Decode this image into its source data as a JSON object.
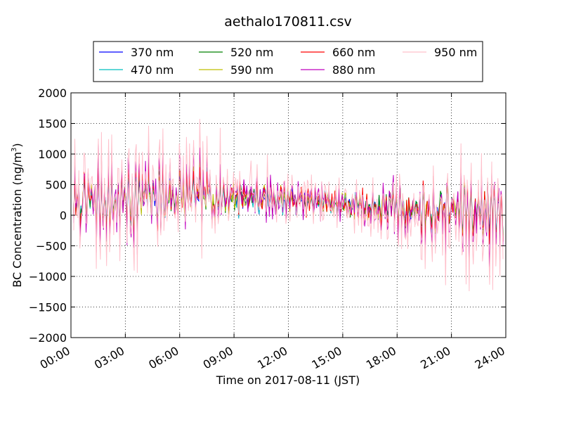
{
  "chart_data": {
    "type": "line",
    "title": "aethalo170811.csv",
    "xlabel": "Time on 2017-08-11 (JST)",
    "ylabel": "BC Concentration (ng/m³)",
    "ylabel_main": "BC Concentration (ng/m",
    "ylabel_sup": "3",
    "ylabel_end": ")",
    "xlim": [
      "00:00",
      "24:00"
    ],
    "ylim": [
      -2000,
      2000
    ],
    "x_tick_labels": [
      "00:00",
      "03:00",
      "06:00",
      "09:00",
      "12:00",
      "15:00",
      "18:00",
      "21:00",
      "24:00"
    ],
    "y_tick_labels": [
      "2000",
      "1500",
      "1000",
      "500",
      "0",
      "−500",
      "−1000",
      "−1500",
      "−2000"
    ],
    "y_ticks": [
      2000,
      1500,
      1000,
      500,
      0,
      -500,
      -1000,
      -1500,
      -2000
    ],
    "grid": true,
    "legend_position": "top-center",
    "series": [
      {
        "name": "370 nm",
        "color": "#0000ff",
        "amplitude": 300,
        "seed": 11
      },
      {
        "name": "470 nm",
        "color": "#00bfbf",
        "amplitude": 310,
        "seed": 23
      },
      {
        "name": "520 nm",
        "color": "#008000",
        "amplitude": 330,
        "seed": 37
      },
      {
        "name": "590 nm",
        "color": "#bfbf00",
        "amplitude": 340,
        "seed": 41
      },
      {
        "name": "660 nm",
        "color": "#ff0000",
        "amplitude": 360,
        "seed": 53
      },
      {
        "name": "880 nm",
        "color": "#bf00bf",
        "amplitude": 480,
        "seed": 67
      },
      {
        "name": "950 nm",
        "color": "#ffc0cb",
        "amplitude": 650,
        "seed": 79
      }
    ]
  }
}
